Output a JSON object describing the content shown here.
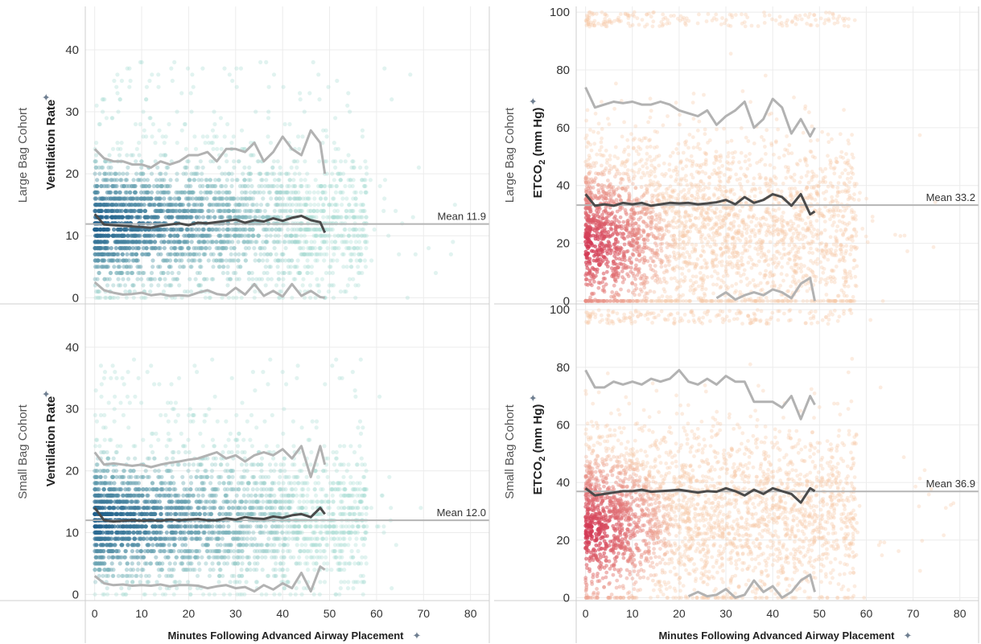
{
  "x_axis": {
    "label": "Minutes Following Advanced Airway Placement",
    "ticks": [
      0,
      10,
      20,
      30,
      40,
      50,
      60,
      70,
      80
    ],
    "range": [
      -2,
      84
    ]
  },
  "row_labels": [
    "Large Bag Cohort",
    "Small Bag Cohort"
  ],
  "left_ylabel": "Ventilation Rate",
  "right_ylabel_main": "ETCO",
  "right_ylabel_sub": "2",
  "right_ylabel_tail": " (mm Hg)",
  "colors": {
    "teal_light": "#a9dcd3",
    "teal_dark": "#1f5f8b",
    "orange_light": "#f6c8a6",
    "red_dark": "#d33a55",
    "band_line": "#b2b2b2",
    "mean_line": "#4a4a4a",
    "ref_line": "#b5b5b5",
    "grid": "#ececec",
    "pin_icon": "#6f7f91"
  },
  "chart_data": [
    {
      "name": "large-ventilation",
      "type": "scatter",
      "cohort": "Large Bag Cohort",
      "x_range": [
        -2,
        84
      ],
      "y_range": [
        -1,
        47
      ],
      "y_ticks": [
        0,
        10,
        20,
        30,
        40
      ],
      "mean_label": "Mean 11.9",
      "mean_value": 11.9,
      "scatter_color_scale": [
        "#a9dcd3",
        "#1f5f8b"
      ],
      "series": [
        {
          "name": "upper",
          "x": [
            0,
            2,
            4,
            6,
            8,
            10,
            12,
            14,
            16,
            18,
            20,
            22,
            24,
            26,
            28,
            30,
            32,
            34,
            36,
            38,
            40,
            42,
            44,
            46,
            48,
            49
          ],
          "y": [
            24,
            22.5,
            22,
            22,
            21.5,
            21.5,
            21,
            22,
            21.5,
            22,
            23,
            23,
            23.5,
            22,
            24,
            24,
            23.5,
            25,
            22,
            23.5,
            26,
            24,
            23,
            27,
            25,
            20
          ]
        },
        {
          "name": "mean",
          "x": [
            0,
            2,
            4,
            6,
            8,
            10,
            12,
            14,
            16,
            18,
            20,
            22,
            24,
            26,
            28,
            30,
            32,
            34,
            36,
            38,
            40,
            42,
            44,
            46,
            48,
            49
          ],
          "y": [
            13.5,
            11.8,
            11.7,
            11.6,
            11.5,
            11.4,
            11.3,
            11.6,
            11.8,
            12,
            11.7,
            12.1,
            12,
            12.2,
            12.4,
            12.6,
            12.1,
            12.5,
            12.3,
            12.8,
            12.4,
            12.9,
            13.2,
            12.5,
            12.2,
            10.5
          ]
        },
        {
          "name": "lower",
          "x": [
            0,
            2,
            4,
            6,
            8,
            10,
            12,
            14,
            16,
            18,
            20,
            22,
            24,
            26,
            28,
            30,
            32,
            34,
            36,
            38,
            40,
            42,
            44,
            46,
            48,
            49
          ],
          "y": [
            2.5,
            1.2,
            0.8,
            0.5,
            0.6,
            0.8,
            0.4,
            0.6,
            0.3,
            0.4,
            0.3,
            0.8,
            1.2,
            0.6,
            0.4,
            1.6,
            0.5,
            2.2,
            0.3,
            1.1,
            0.2,
            2.2,
            0.3,
            1.1,
            0.1,
            0
          ]
        }
      ]
    },
    {
      "name": "large-etco2",
      "type": "scatter",
      "cohort": "Large Bag Cohort",
      "x_range": [
        -2,
        84
      ],
      "y_range": [
        -1,
        102
      ],
      "y_ticks": [
        0,
        20,
        40,
        60,
        80,
        100
      ],
      "mean_label": "Mean 33.2",
      "mean_value": 33.2,
      "scatter_color_scale": [
        "#f6c8a6",
        "#d33a55"
      ],
      "series": [
        {
          "name": "upper",
          "x": [
            0,
            2,
            4,
            6,
            8,
            10,
            12,
            14,
            16,
            18,
            20,
            22,
            24,
            26,
            28,
            30,
            32,
            34,
            36,
            38,
            40,
            42,
            44,
            46,
            48,
            49
          ],
          "y": [
            74,
            67,
            68,
            69,
            68.5,
            69,
            68,
            68,
            69,
            68,
            66,
            65,
            64,
            66,
            61,
            64,
            66,
            69,
            60,
            63,
            70,
            67,
            58,
            63,
            57,
            60
          ]
        },
        {
          "name": "mean",
          "x": [
            0,
            2,
            4,
            6,
            8,
            10,
            12,
            14,
            16,
            18,
            20,
            22,
            24,
            26,
            28,
            30,
            32,
            34,
            36,
            38,
            40,
            42,
            44,
            46,
            48,
            49
          ],
          "y": [
            37,
            33,
            33.5,
            33,
            34,
            33.5,
            34,
            33,
            33.5,
            34,
            33.8,
            34,
            33.5,
            33.8,
            34.2,
            35,
            33.5,
            36,
            34,
            35,
            37,
            36,
            33,
            37,
            30,
            31
          ]
        },
        {
          "name": "lower",
          "x": [
            28,
            30,
            32,
            34,
            36,
            38,
            40,
            42,
            44,
            46,
            48,
            49
          ],
          "y": [
            1,
            3,
            0.5,
            2,
            3,
            2,
            4,
            3,
            1,
            6,
            8,
            0
          ]
        }
      ]
    },
    {
      "name": "small-ventilation",
      "type": "scatter",
      "cohort": "Small Bag Cohort",
      "x_range": [
        -2,
        84
      ],
      "y_range": [
        -1,
        47
      ],
      "y_ticks": [
        0,
        10,
        20,
        30,
        40
      ],
      "mean_label": "Mean 12.0",
      "mean_value": 12.0,
      "scatter_color_scale": [
        "#a9dcd3",
        "#1f5f8b"
      ],
      "series": [
        {
          "name": "upper",
          "x": [
            0,
            2,
            4,
            6,
            8,
            10,
            12,
            14,
            16,
            18,
            20,
            22,
            24,
            26,
            28,
            30,
            32,
            34,
            36,
            38,
            40,
            42,
            44,
            46,
            48,
            49
          ],
          "y": [
            23,
            21,
            21.2,
            21,
            20.8,
            21,
            20.6,
            21,
            21.3,
            21.5,
            21.8,
            22,
            22.5,
            23,
            22,
            22.5,
            21.5,
            22.5,
            23,
            22.5,
            23.5,
            22,
            24,
            19,
            24,
            21
          ]
        },
        {
          "name": "mean",
          "x": [
            0,
            2,
            4,
            6,
            8,
            10,
            12,
            14,
            16,
            18,
            20,
            22,
            24,
            26,
            28,
            30,
            32,
            34,
            36,
            38,
            40,
            42,
            44,
            46,
            48,
            49
          ],
          "y": [
            14,
            12,
            11.8,
            11.9,
            12,
            11.9,
            12,
            11.9,
            12.1,
            12,
            12.1,
            12.2,
            12,
            12,
            12.3,
            12.1,
            12.5,
            12.3,
            12.2,
            12.6,
            12.4,
            12.8,
            13,
            12.5,
            14,
            13
          ]
        },
        {
          "name": "lower",
          "x": [
            0,
            2,
            4,
            6,
            8,
            10,
            12,
            14,
            16,
            18,
            20,
            22,
            24,
            26,
            28,
            30,
            32,
            34,
            36,
            38,
            40,
            42,
            44,
            46,
            48,
            49
          ],
          "y": [
            3,
            1.8,
            1.5,
            1.6,
            1.4,
            1.5,
            1.4,
            1.6,
            1.3,
            1.5,
            1.5,
            1.4,
            1,
            1.3,
            1.5,
            1,
            1.2,
            0.5,
            1.5,
            0.8,
            1.8,
            1,
            3.5,
            0.5,
            4.5,
            4
          ]
        }
      ]
    },
    {
      "name": "small-etco2",
      "type": "scatter",
      "cohort": "Small Bag Cohort",
      "x_range": [
        -2,
        84
      ],
      "y_range": [
        -1,
        102
      ],
      "y_ticks": [
        0,
        20,
        40,
        60,
        80,
        100
      ],
      "mean_label": "Mean 36.9",
      "mean_value": 36.9,
      "scatter_color_scale": [
        "#f6c8a6",
        "#d33a55"
      ],
      "series": [
        {
          "name": "upper",
          "x": [
            0,
            2,
            4,
            6,
            8,
            10,
            12,
            14,
            16,
            18,
            20,
            22,
            24,
            26,
            28,
            30,
            32,
            34,
            36,
            38,
            40,
            42,
            44,
            46,
            48,
            49
          ],
          "y": [
            79,
            73,
            73,
            75,
            74,
            75,
            74,
            76,
            75,
            76,
            79,
            75,
            74,
            76,
            74,
            77,
            75,
            75,
            68,
            68,
            68,
            66,
            70,
            62,
            70,
            67
          ]
        },
        {
          "name": "mean",
          "x": [
            0,
            2,
            4,
            6,
            8,
            10,
            12,
            14,
            16,
            18,
            20,
            22,
            24,
            26,
            28,
            30,
            32,
            34,
            36,
            38,
            40,
            42,
            44,
            46,
            48,
            49
          ],
          "y": [
            38,
            35.5,
            36,
            36.5,
            37,
            37,
            37.5,
            36.8,
            37,
            37.2,
            37.5,
            37,
            36.5,
            37,
            36.8,
            38,
            37,
            35.5,
            37.5,
            36,
            38,
            37,
            36,
            33,
            38,
            37
          ]
        },
        {
          "name": "lower",
          "x": [
            22,
            24,
            26,
            28,
            30,
            32,
            34,
            36,
            38,
            40,
            42,
            44,
            46,
            48,
            49
          ],
          "y": [
            0.5,
            2,
            0.5,
            1,
            3,
            0,
            1,
            6,
            2,
            4,
            0,
            2,
            6,
            8,
            2
          ]
        }
      ]
    }
  ]
}
